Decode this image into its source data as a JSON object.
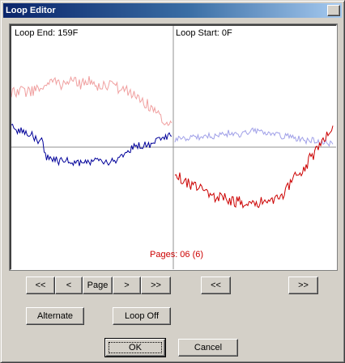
{
  "window": {
    "title": "Loop Editor"
  },
  "waveform": {
    "loop_end_label": "Loop End: 159F",
    "loop_start_label": "Loop Start: 0F",
    "pages_label": "Pages: 06 (6)",
    "colors": {
      "end_wave": "#000099",
      "end_ghost": "#f0a0a0",
      "start_wave": "#cc0000",
      "start_ghost": "#a0a0e8",
      "pages_text": "#cc0000"
    }
  },
  "navigation": {
    "first_label": "<<",
    "prev_label": "<",
    "page_label": "Page",
    "next_label": ">",
    "last_label": ">>",
    "start_back_label": "<<",
    "start_forward_label": ">>"
  },
  "options": {
    "alternate_label": "Alternate",
    "loop_off_label": "Loop Off"
  },
  "dialog": {
    "ok_label": "OK",
    "cancel_label": "Cancel"
  }
}
